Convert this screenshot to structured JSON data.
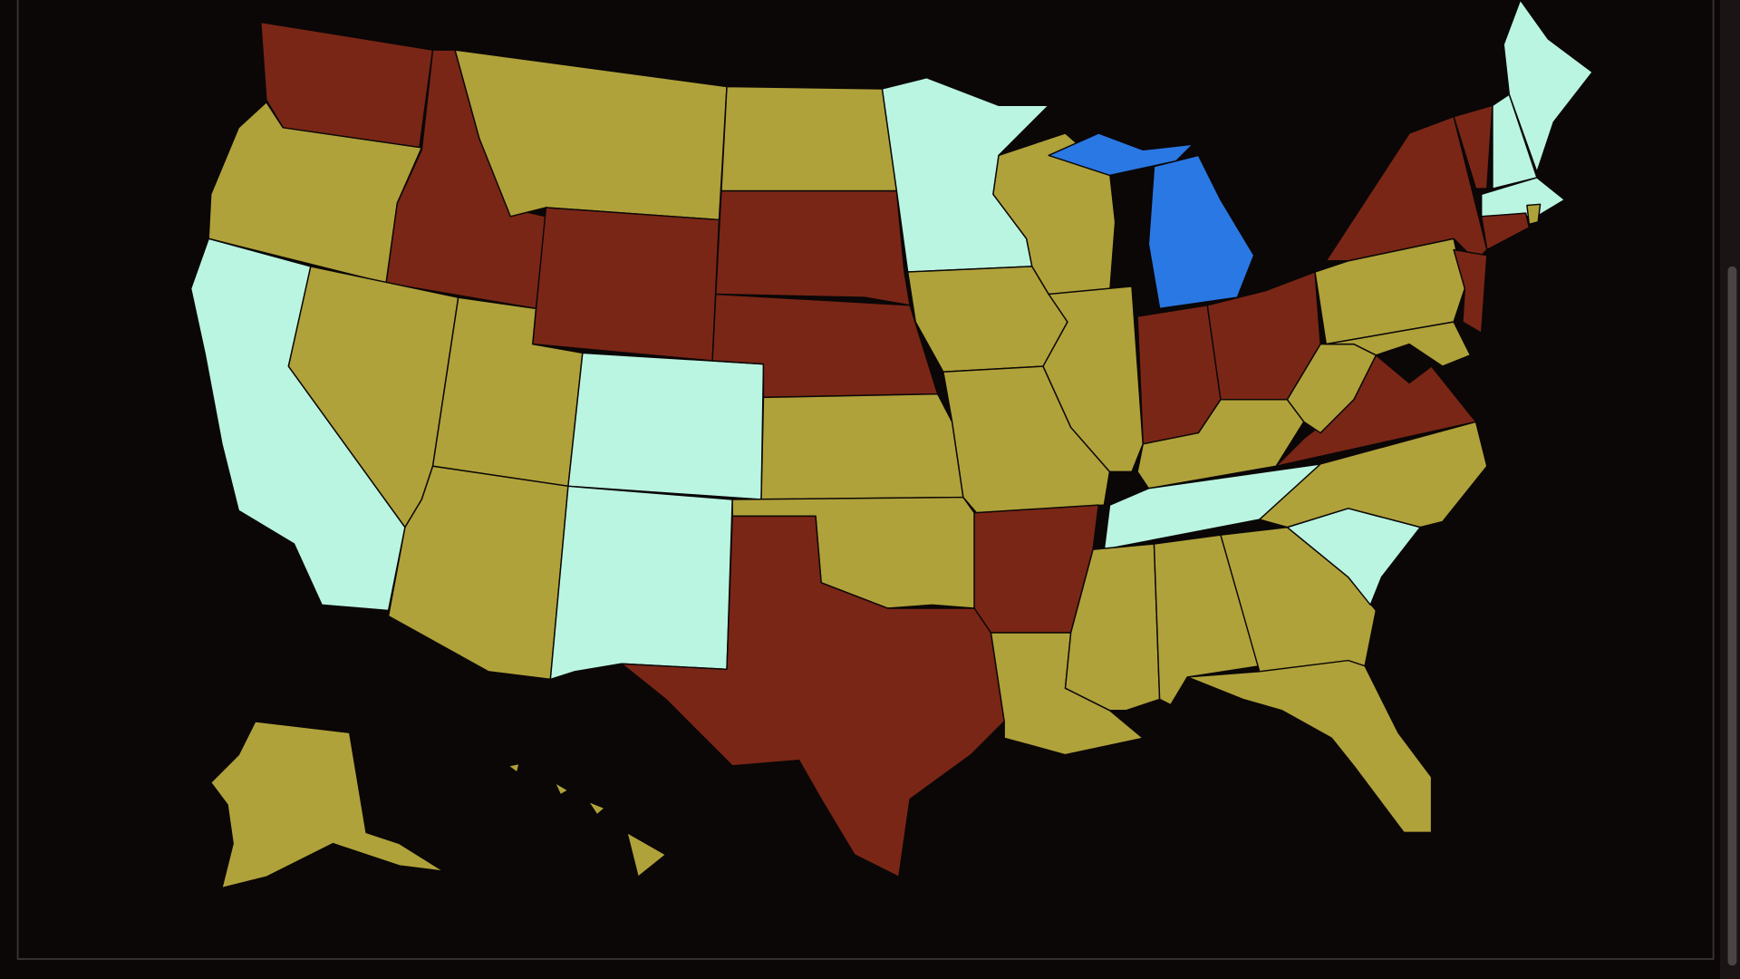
{
  "map": {
    "fills": [
      "#7a2616",
      "#b0a23a",
      "#baf5e1",
      "#7a2616",
      "#b0a23a",
      "#b0a23a",
      "#7a2616",
      "#b0a23a",
      "#b0a23a",
      "#baf5e1",
      "#baf5e1",
      "#b0a23a",
      "#7a2616",
      "#7a2616",
      "#b0a23a",
      "#b0a23a",
      "#7a2616",
      "#baf5e1",
      "#b0a23a",
      "#b0a23a",
      "#7a2616",
      "#b0a23a",
      "#b0a23a",
      "#b0a23a",
      "#2a78e4",
      "#7a2616",
      "#7a2616",
      "#b0a23a",
      "#baf5e1",
      "#b0a23a",
      "#b0a23a",
      "#b0a23a",
      "#b0a23a",
      "#baf5e1",
      "#b0a23a",
      "#7a2616",
      "#b0a23a",
      "#b0a23a",
      "#b0a23a",
      "#7a2616",
      "#7a2616",
      "#7a2616",
      "#baf5e1",
      "#baf5e1",
      "#baf5e1",
      "#7a2616",
      "#b0a23a",
      "#b0a23a",
      "#b0a23a"
    ]
  }
}
